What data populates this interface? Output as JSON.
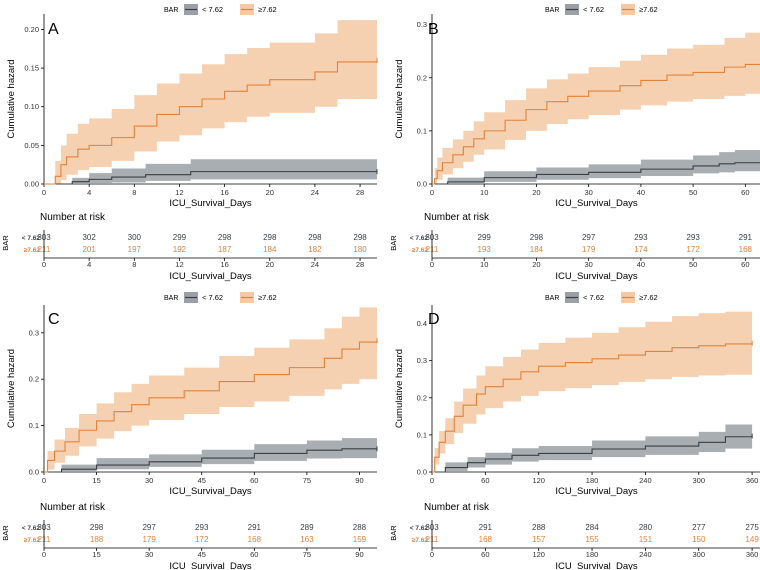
{
  "chart_data": [
    {
      "type": "line",
      "panel_label": "A",
      "title": "",
      "xlabel": "ICU_Survival_Days",
      "ylabel": "Cumulative hazard",
      "xlim": [
        0,
        29.5
      ],
      "ylim": [
        0,
        0.22
      ],
      "xticks": [
        0,
        4,
        8,
        12,
        16,
        20,
        24,
        28
      ],
      "yticks": [
        "0.00",
        "0.05",
        "0.10",
        "0.15",
        "0.20"
      ],
      "legend": {
        "title": "BAR",
        "position": "top",
        "entries": [
          "< 7.62",
          "≥7.62"
        ]
      },
      "series": [
        {
          "name": "< 7.62",
          "color": "#3a3f44",
          "band_color": "#9aa0a5",
          "x": [
            0,
            2.5,
            4,
            6,
            9,
            13,
            29.5
          ],
          "y": [
            0,
            0.003,
            0.006,
            0.009,
            0.012,
            0.016,
            0.016
          ],
          "lower": [
            0,
            0,
            0,
            0.002,
            0.004,
            0.006,
            0.006
          ],
          "upper": [
            0,
            0.008,
            0.014,
            0.02,
            0.026,
            0.032,
            0.032
          ]
        },
        {
          "name": "≥7.62",
          "color": "#e0823a",
          "band_color": "#f5c9a3",
          "x": [
            0,
            1,
            1.5,
            2,
            3,
            4,
            6,
            8,
            10,
            12,
            14,
            16,
            18,
            20,
            24,
            26,
            29.5
          ],
          "y": [
            0,
            0.01,
            0.025,
            0.035,
            0.045,
            0.05,
            0.06,
            0.075,
            0.09,
            0.1,
            0.11,
            0.12,
            0.128,
            0.135,
            0.145,
            0.158,
            0.16
          ],
          "lower": [
            0,
            0,
            0.005,
            0.012,
            0.018,
            0.022,
            0.03,
            0.042,
            0.055,
            0.063,
            0.072,
            0.08,
            0.087,
            0.092,
            0.1,
            0.11,
            0.11
          ],
          "upper": [
            0,
            0.03,
            0.05,
            0.065,
            0.078,
            0.085,
            0.097,
            0.115,
            0.13,
            0.143,
            0.155,
            0.168,
            0.176,
            0.183,
            0.195,
            0.212,
            0.215
          ]
        }
      ],
      "risk_table": {
        "title": "Number at risk",
        "strata_label": "BAR",
        "x": [
          0,
          4,
          8,
          12,
          16,
          20,
          24,
          28
        ],
        "rows": [
          {
            "label": "< 7.62",
            "values": [
              303,
              302,
              300,
              299,
              298,
              298,
              298,
              298
            ]
          },
          {
            "label": "≥7.62",
            "values": [
              211,
              201,
              197,
              192,
              187,
              184,
              182,
              180
            ]
          }
        ]
      }
    },
    {
      "type": "line",
      "panel_label": "B",
      "title": "",
      "xlabel": "ICU_Survival_Days",
      "ylabel": "Cumulative hazard",
      "xlim": [
        0,
        63
      ],
      "ylim": [
        0,
        0.32
      ],
      "xticks": [
        0,
        10,
        20,
        30,
        40,
        50,
        60
      ],
      "yticks": [
        "0.0",
        "0.1",
        "0.2",
        "0.3"
      ],
      "legend": {
        "title": "BAR",
        "position": "top",
        "entries": [
          "< 7.62",
          "≥7.62"
        ]
      },
      "series": [
        {
          "name": "< 7.62",
          "color": "#3a3f44",
          "band_color": "#9aa0a5",
          "x": [
            0,
            3,
            10,
            20,
            30,
            40,
            50,
            55,
            58,
            63
          ],
          "y": [
            0,
            0.004,
            0.012,
            0.018,
            0.022,
            0.028,
            0.034,
            0.038,
            0.04,
            0.04
          ],
          "lower": [
            0,
            0,
            0.004,
            0.008,
            0.011,
            0.015,
            0.02,
            0.022,
            0.024,
            0.024
          ],
          "upper": [
            0,
            0.012,
            0.024,
            0.031,
            0.037,
            0.046,
            0.054,
            0.06,
            0.064,
            0.064
          ]
        },
        {
          "name": "≥7.62",
          "color": "#e0823a",
          "band_color": "#f5c9a3",
          "x": [
            0,
            0.5,
            1,
            2,
            4,
            6,
            8,
            10,
            14,
            18,
            22,
            26,
            30,
            36,
            40,
            45,
            50,
            56,
            60,
            63
          ],
          "y": [
            0,
            0.01,
            0.025,
            0.04,
            0.055,
            0.07,
            0.085,
            0.1,
            0.12,
            0.14,
            0.155,
            0.165,
            0.175,
            0.185,
            0.195,
            0.205,
            0.21,
            0.22,
            0.225,
            0.228
          ],
          "lower": [
            0,
            0,
            0.008,
            0.018,
            0.03,
            0.042,
            0.055,
            0.065,
            0.083,
            0.1,
            0.113,
            0.122,
            0.13,
            0.14,
            0.148,
            0.155,
            0.16,
            0.166,
            0.17,
            0.17
          ],
          "upper": [
            0,
            0.03,
            0.05,
            0.068,
            0.084,
            0.1,
            0.118,
            0.135,
            0.158,
            0.18,
            0.197,
            0.208,
            0.22,
            0.232,
            0.243,
            0.255,
            0.262,
            0.275,
            0.285,
            0.29
          ]
        }
      ],
      "risk_table": {
        "title": "Number at risk",
        "strata_label": "BAR",
        "x": [
          0,
          10,
          20,
          30,
          40,
          50,
          60
        ],
        "rows": [
          {
            "label": "< 7.62",
            "values": [
              303,
              299,
              298,
              297,
              293,
              293,
              291
            ]
          },
          {
            "label": "≥7.62",
            "values": [
              211,
              193,
              184,
              179,
              174,
              172,
              168
            ]
          }
        ]
      }
    },
    {
      "type": "line",
      "panel_label": "C",
      "title": "",
      "xlabel": "ICU_Survival_Days",
      "ylabel": "Cumulative hazard",
      "xlim": [
        0,
        95
      ],
      "ylim": [
        0,
        0.36
      ],
      "xticks": [
        0,
        15,
        30,
        45,
        60,
        75,
        90
      ],
      "yticks": [
        "0.0",
        "0.1",
        "0.2",
        "0.3"
      ],
      "legend": {
        "title": "BAR",
        "position": "top",
        "entries": [
          "< 7.62",
          "≥7.62"
        ]
      },
      "series": [
        {
          "name": "< 7.62",
          "color": "#3a3f44",
          "band_color": "#9aa0a5",
          "x": [
            0,
            5,
            15,
            30,
            45,
            60,
            75,
            85,
            95
          ],
          "y": [
            0,
            0.006,
            0.015,
            0.022,
            0.03,
            0.04,
            0.047,
            0.05,
            0.05
          ],
          "lower": [
            0,
            0,
            0.006,
            0.011,
            0.017,
            0.024,
            0.029,
            0.03,
            0.03
          ],
          "upper": [
            0,
            0.016,
            0.03,
            0.038,
            0.048,
            0.06,
            0.068,
            0.073,
            0.073
          ]
        },
        {
          "name": "≥7.62",
          "color": "#e0823a",
          "band_color": "#f5c9a3",
          "x": [
            0,
            1,
            3,
            6,
            10,
            15,
            20,
            25,
            30,
            40,
            50,
            60,
            70,
            80,
            85,
            90,
            95
          ],
          "y": [
            0,
            0.025,
            0.045,
            0.065,
            0.09,
            0.11,
            0.13,
            0.145,
            0.16,
            0.175,
            0.195,
            0.21,
            0.225,
            0.245,
            0.265,
            0.28,
            0.283
          ],
          "lower": [
            0,
            0.005,
            0.02,
            0.035,
            0.055,
            0.072,
            0.088,
            0.1,
            0.112,
            0.125,
            0.14,
            0.152,
            0.164,
            0.178,
            0.19,
            0.2,
            0.2
          ],
          "upper": [
            0,
            0.045,
            0.07,
            0.095,
            0.125,
            0.148,
            0.172,
            0.19,
            0.208,
            0.225,
            0.25,
            0.268,
            0.286,
            0.31,
            0.335,
            0.355,
            0.36
          ]
        }
      ],
      "risk_table": {
        "title": "Number at risk",
        "strata_label": "BAR",
        "x": [
          0,
          15,
          30,
          45,
          60,
          75,
          90
        ],
        "rows": [
          {
            "label": "< 7.62",
            "values": [
              303,
              298,
              297,
              293,
              291,
              289,
              288
            ]
          },
          {
            "label": "≥7.62",
            "values": [
              211,
              188,
              179,
              172,
              168,
              163,
              159
            ]
          }
        ]
      }
    },
    {
      "type": "line",
      "panel_label": "D",
      "title": "",
      "xlabel": "ICU_Survival_Days",
      "ylabel": "Cumulative hazard",
      "xlim": [
        0,
        370
      ],
      "ylim": [
        0,
        0.45
      ],
      "xticks": [
        0,
        60,
        120,
        180,
        240,
        300,
        360
      ],
      "yticks": [
        "0.0",
        "0.1",
        "0.2",
        "0.3",
        "0.4"
      ],
      "legend": {
        "title": "BAR",
        "position": "top",
        "entries": [
          "< 7.62",
          "≥7.62"
        ]
      },
      "series": [
        {
          "name": "< 7.62",
          "color": "#3a3f44",
          "band_color": "#9aa0a5",
          "x": [
            0,
            15,
            40,
            60,
            90,
            120,
            180,
            240,
            300,
            330,
            360
          ],
          "y": [
            0,
            0.012,
            0.025,
            0.035,
            0.045,
            0.05,
            0.062,
            0.07,
            0.08,
            0.095,
            0.097
          ],
          "lower": [
            0,
            0,
            0.012,
            0.02,
            0.028,
            0.032,
            0.04,
            0.046,
            0.054,
            0.063,
            0.063
          ],
          "upper": [
            0,
            0.026,
            0.04,
            0.052,
            0.064,
            0.07,
            0.085,
            0.096,
            0.108,
            0.128,
            0.13
          ]
        },
        {
          "name": "≥7.62",
          "color": "#e0823a",
          "band_color": "#f5c9a3",
          "x": [
            0,
            3,
            8,
            15,
            25,
            35,
            50,
            60,
            80,
            100,
            120,
            150,
            180,
            210,
            240,
            270,
            300,
            330,
            360
          ],
          "y": [
            0,
            0.04,
            0.08,
            0.11,
            0.15,
            0.18,
            0.21,
            0.23,
            0.25,
            0.27,
            0.285,
            0.295,
            0.305,
            0.315,
            0.325,
            0.335,
            0.34,
            0.345,
            0.347
          ],
          "lower": [
            0,
            0.02,
            0.05,
            0.075,
            0.105,
            0.13,
            0.155,
            0.172,
            0.19,
            0.205,
            0.218,
            0.226,
            0.234,
            0.243,
            0.25,
            0.256,
            0.26,
            0.262,
            0.262
          ],
          "upper": [
            0,
            0.065,
            0.11,
            0.145,
            0.19,
            0.225,
            0.26,
            0.285,
            0.31,
            0.33,
            0.348,
            0.362,
            0.375,
            0.39,
            0.405,
            0.42,
            0.428,
            0.432,
            0.435
          ]
        }
      ],
      "risk_table": {
        "title": "Number at risk",
        "strata_label": "BAR",
        "x": [
          0,
          60,
          120,
          180,
          240,
          300,
          360
        ],
        "rows": [
          {
            "label": "< 7.62",
            "values": [
              303,
              291,
              288,
              284,
              280,
              277,
              275
            ]
          },
          {
            "label": "≥7.62",
            "values": [
              211,
              168,
              157,
              155,
              151,
              150,
              149
            ]
          }
        ]
      }
    }
  ]
}
